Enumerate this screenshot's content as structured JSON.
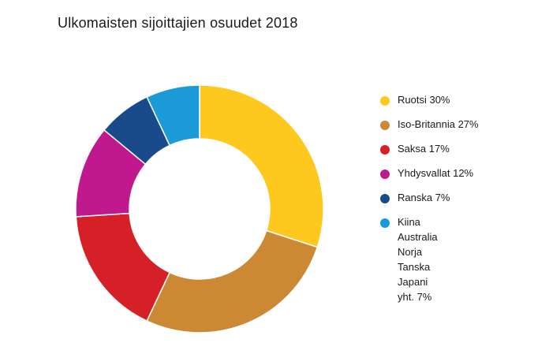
{
  "chart_data": {
    "type": "pie",
    "donut": true,
    "title": "Ulkomaisten sijoittajien osuudet 2018",
    "categories": [
      "Ruotsi 30%",
      "Iso-Britannia 27%",
      "Saksa 17%",
      "Yhdysvallat 12%",
      "Ranska 7%",
      "Kiina\nAustralia\nNorja\nTanska\nJapani\nyht. 7%"
    ],
    "values": [
      30,
      27,
      17,
      12,
      7,
      7
    ],
    "colors": [
      "#FFC81E",
      "#CC8833",
      "#D62027",
      "#C0198E",
      "#194A8C",
      "#1A9BD7"
    ],
    "legend_position": "right"
  }
}
